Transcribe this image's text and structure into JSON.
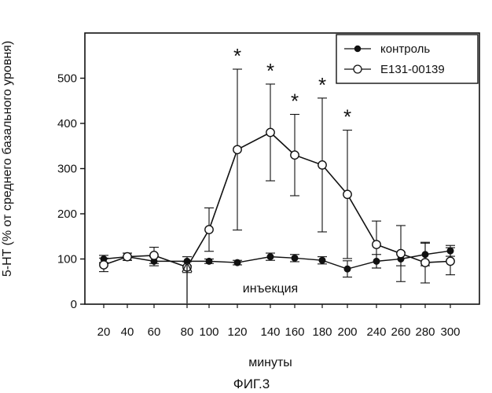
{
  "figure_caption": "ФИГ.3",
  "chart_data": {
    "type": "line",
    "title": "",
    "xlabel": "минуты",
    "ylabel": "5-HT (% от среднего базального уровня)",
    "ylim": [
      0,
      600
    ],
    "yticks": [
      0,
      100,
      200,
      300,
      400,
      500
    ],
    "x_tick_labels": [
      "20",
      "40",
      "60",
      "80",
      "100",
      "120",
      "140",
      "160",
      "180",
      "200",
      "240",
      "260",
      "280",
      "300"
    ],
    "grid": false,
    "legend_position": "top-right",
    "series": [
      {
        "name": "контроль",
        "marker": "filled-circle",
        "x": [
          "20",
          "40",
          "60",
          "80",
          "100",
          "120",
          "140",
          "160",
          "180",
          "200",
          "240",
          "260",
          "280",
          "300"
        ],
        "values": [
          100,
          105,
          95,
          95,
          95,
          92,
          105,
          102,
          97,
          78,
          95,
          100,
          110,
          118
        ],
        "errors": [
          8,
          8,
          10,
          10,
          5,
          5,
          8,
          8,
          8,
          18,
          15,
          15,
          25,
          12
        ]
      },
      {
        "name": "E131-00139",
        "marker": "open-circle",
        "x": [
          "20",
          "40",
          "60",
          "80",
          "100",
          "120",
          "140",
          "160",
          "180",
          "200",
          "240",
          "260",
          "280",
          "300"
        ],
        "values": [
          87,
          105,
          108,
          82,
          165,
          342,
          380,
          330,
          308,
          243,
          132,
          112,
          92,
          95
        ],
        "errors": [
          15,
          8,
          18,
          12,
          48,
          178,
          107,
          90,
          148,
          142,
          52,
          62,
          45,
          30
        ]
      }
    ],
    "significance_marks": [
      {
        "x": "120",
        "label": "*"
      },
      {
        "x": "140",
        "label": "*"
      },
      {
        "x": "160",
        "label": "*"
      },
      {
        "x": "180",
        "label": "*"
      },
      {
        "x": "200",
        "label": "*"
      }
    ],
    "annotations": [
      {
        "text": "инъекция",
        "x": "80"
      }
    ]
  }
}
